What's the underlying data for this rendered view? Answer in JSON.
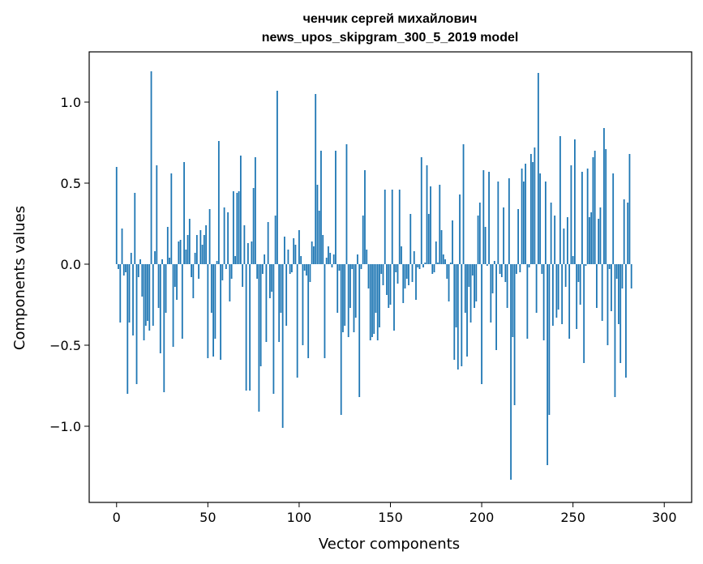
{
  "chart_data": {
    "type": "bar",
    "title_line1": "ченчик сергей михайлович",
    "title_line2": "news_upos_skipgram_300_5_2019 model",
    "xlabel": "Vector components",
    "ylabel": "Components values",
    "xlim": [
      -15,
      315
    ],
    "ylim": [
      -1.47,
      1.31
    ],
    "xticks": [
      0,
      50,
      100,
      150,
      200,
      250,
      300
    ],
    "xtick_labels": [
      "0",
      "50",
      "100",
      "150",
      "200",
      "250",
      "300"
    ],
    "yticks": [
      -1.0,
      -0.5,
      0.0,
      0.5,
      1.0
    ],
    "ytick_labels": [
      "−1.0",
      "−0.5",
      "0.0",
      "0.5",
      "1.0"
    ],
    "grid": false,
    "bar_color": "#1f77b4",
    "values": [
      0.6,
      -0.03,
      -0.36,
      0.22,
      -0.07,
      -0.05,
      -0.8,
      -0.36,
      0.07,
      -0.44,
      0.44,
      -0.74,
      -0.08,
      0.03,
      -0.2,
      -0.47,
      -0.38,
      -0.35,
      -0.41,
      1.19,
      -0.38,
      0.08,
      0.61,
      -0.27,
      -0.55,
      0.03,
      -0.79,
      -0.3,
      0.23,
      0.04,
      0.56,
      -0.51,
      -0.14,
      -0.22,
      0.14,
      0.15,
      -0.46,
      0.63,
      0.09,
      0.18,
      0.28,
      -0.08,
      -0.21,
      0.07,
      0.18,
      -0.09,
      0.21,
      0.12,
      0.18,
      0.24,
      -0.58,
      0.34,
      -0.3,
      -0.57,
      -0.46,
      0.02,
      0.76,
      -0.59,
      -0.1,
      0.35,
      -0.03,
      0.32,
      -0.23,
      -0.09,
      0.45,
      0.05,
      0.44,
      0.45,
      0.67,
      -0.14,
      0.24,
      -0.78,
      0.13,
      -0.78,
      0.14,
      0.47,
      0.66,
      -0.09,
      -0.91,
      -0.63,
      -0.06,
      0.06,
      -0.48,
      0.26,
      -0.21,
      -0.17,
      -0.8,
      0.3,
      1.07,
      -0.48,
      -0.3,
      -1.01,
      0.17,
      -0.38,
      0.09,
      -0.06,
      -0.05,
      0.16,
      0.12,
      -0.7,
      0.21,
      0.05,
      -0.5,
      -0.04,
      -0.07,
      -0.58,
      -0.11,
      0.14,
      0.11,
      1.05,
      0.49,
      0.33,
      0.7,
      0.18,
      -0.58,
      0.04,
      0.11,
      0.07,
      -0.02,
      0.06,
      0.7,
      -0.3,
      -0.04,
      -0.93,
      -0.42,
      -0.38,
      0.74,
      -0.45,
      -0.27,
      -0.03,
      -0.42,
      -0.33,
      0.06,
      -0.82,
      -0.03,
      0.3,
      0.58,
      0.09,
      -0.15,
      -0.47,
      -0.45,
      -0.43,
      -0.3,
      -0.47,
      -0.39,
      -0.06,
      -0.13,
      0.46,
      -0.19,
      -0.27,
      -0.25,
      0.46,
      -0.41,
      -0.05,
      -0.12,
      0.46,
      0.11,
      -0.24,
      -0.15,
      -0.09,
      -0.13,
      0.31,
      -0.11,
      0.08,
      -0.22,
      -0.02,
      -0.03,
      0.66,
      -0.02,
      0.01,
      0.61,
      0.31,
      0.48,
      -0.06,
      -0.05,
      0.14,
      0.01,
      0.49,
      0.21,
      0.06,
      0.03,
      -0.09,
      -0.23,
      0.01,
      0.27,
      -0.59,
      -0.39,
      -0.65,
      0.43,
      -0.63,
      0.74,
      -0.3,
      -0.57,
      -0.14,
      -0.36,
      -0.07,
      -0.27,
      -0.23,
      0.3,
      0.38,
      -0.74,
      0.58,
      0.23,
      -0.01,
      0.57,
      -0.36,
      -0.18,
      0.02,
      -0.53,
      0.51,
      -0.06,
      -0.08,
      0.35,
      -0.11,
      -0.27,
      0.53,
      -1.33,
      -0.45,
      -0.87,
      -0.06,
      0.34,
      -0.05,
      0.59,
      0.51,
      0.62,
      -0.46,
      -0.02,
      0.68,
      0.63,
      0.72,
      -0.3,
      1.18,
      0.56,
      -0.06,
      -0.47,
      0.51,
      -1.24,
      -0.93,
      0.38,
      -0.38,
      0.3,
      -0.33,
      -0.28,
      0.79,
      -0.37,
      0.22,
      -0.14,
      0.29,
      -0.46,
      0.61,
      0.05,
      0.77,
      -0.4,
      -0.11,
      -0.25,
      0.57,
      -0.61,
      -0.01,
      0.59,
      0.29,
      0.32,
      0.66,
      0.7,
      -0.27,
      0.28,
      0.35,
      -0.35,
      0.84,
      0.71,
      -0.5,
      -0.03,
      -0.29,
      0.56,
      -0.82,
      -0.09,
      -0.37,
      -0.61,
      -0.15,
      0.4,
      -0.7,
      0.38,
      0.68,
      -0.15
    ]
  }
}
